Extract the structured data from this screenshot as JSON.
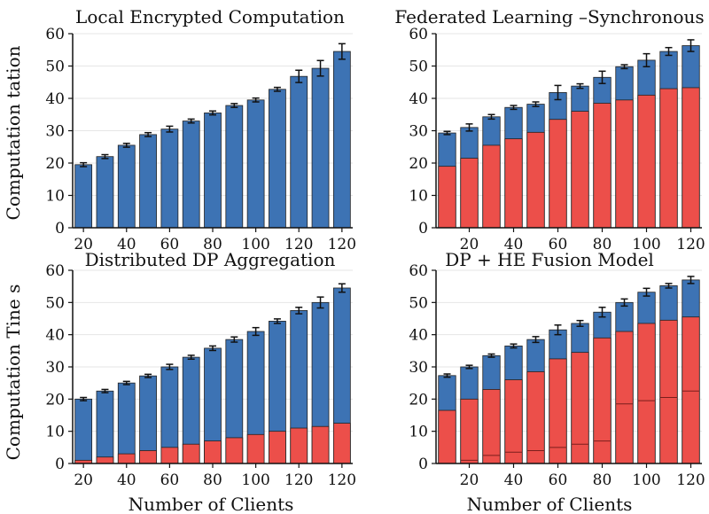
{
  "figure": {
    "ylabel_top": "Computation tation",
    "ylabel_bottom": "Computation Tine s",
    "xlabel_left": "Number of Clients",
    "xlabel_right": "Number of Clients"
  },
  "colors": {
    "blue": "#3d73b4",
    "red": "#ec4f4a"
  },
  "chart_data": [
    {
      "id": "tl",
      "type": "bar",
      "title": "Local Encrypted Computation",
      "ylim": [
        0,
        60
      ],
      "yticks": [
        0,
        10,
        20,
        30,
        40,
        50,
        60
      ],
      "xticks": [
        "20",
        "40",
        "60",
        "80",
        "100",
        "120",
        "120"
      ],
      "xtick_bar_index": [
        0,
        2,
        4,
        6,
        8,
        10,
        12
      ],
      "series": [
        {
          "name": "total",
          "color": "blue",
          "values": [
            19.5,
            22,
            25.5,
            28.8,
            30.5,
            33,
            35.5,
            37.8,
            39.5,
            42.8,
            46.8,
            49.3,
            54.5
          ]
        }
      ],
      "errors": [
        0.6,
        0.6,
        0.6,
        0.6,
        0.9,
        0.6,
        0.6,
        0.6,
        0.6,
        0.6,
        1.9,
        2.4,
        2.4
      ]
    },
    {
      "id": "tr",
      "type": "bar",
      "title": "Federated Learning –Synchronous",
      "ylim": [
        0,
        60
      ],
      "yticks": [
        0,
        10,
        20,
        30,
        40,
        50,
        60
      ],
      "xticks": [
        "20",
        "40",
        "60",
        "80",
        "100",
        "120"
      ],
      "xtick_bar_index": [
        1,
        3,
        5,
        7,
        9,
        11
      ],
      "series": [
        {
          "name": "red",
          "color": "red",
          "values": [
            19,
            21.5,
            25.5,
            27.5,
            29.5,
            33.5,
            36,
            38.5,
            39.5,
            41,
            43,
            43.3
          ]
        },
        {
          "name": "total",
          "color": "blue",
          "values": [
            29.3,
            31,
            34.3,
            37.2,
            38.2,
            41.8,
            43.8,
            46.5,
            49.8,
            51.8,
            54.5,
            56.3
          ]
        }
      ],
      "errors": [
        0.5,
        1.1,
        0.7,
        0.6,
        0.7,
        2.2,
        0.7,
        1.9,
        0.6,
        2.0,
        1.2,
        1.8
      ]
    },
    {
      "id": "bl",
      "type": "bar",
      "title": "Distributed DP Aggregation",
      "ylim": [
        0,
        60
      ],
      "yticks": [
        0,
        10,
        20,
        30,
        40,
        50,
        60
      ],
      "xticks": [
        "20",
        "40",
        "60",
        "80",
        "100",
        "120",
        "120"
      ],
      "xtick_bar_index": [
        0,
        2,
        4,
        6,
        8,
        10,
        12
      ],
      "series": [
        {
          "name": "red",
          "color": "red",
          "values": [
            1,
            2,
            3,
            4,
            5,
            6,
            7,
            8,
            9,
            10,
            11,
            11.5,
            12.5
          ]
        },
        {
          "name": "total",
          "color": "blue",
          "values": [
            20.0,
            22.5,
            25.0,
            27.2,
            30.0,
            33.0,
            35.8,
            38.5,
            41.0,
            44.2,
            47.5,
            50.0,
            54.5
          ]
        }
      ],
      "redtop_abs": [
        1,
        2,
        3,
        4,
        5,
        6,
        7,
        8,
        9,
        10,
        11,
        11.5,
        12.5
      ],
      "errors": [
        0.5,
        0.5,
        0.5,
        0.5,
        0.8,
        0.6,
        0.7,
        0.8,
        1.2,
        0.7,
        1.0,
        1.7,
        1.3
      ]
    },
    {
      "id": "br",
      "type": "bar",
      "title": "DP + HE Fusion Model",
      "ylim": [
        0,
        60
      ],
      "yticks": [
        0,
        10,
        20,
        30,
        40,
        50,
        60
      ],
      "xticks": [
        "20",
        "40",
        "60",
        "80",
        "100",
        "120"
      ],
      "xtick_bar_index": [
        1,
        3,
        5,
        7,
        9,
        11
      ],
      "series": [
        {
          "name": "red_bottom_line",
          "color": "red",
          "values": [
            0,
            1,
            2.5,
            3.5,
            4,
            5,
            6,
            7,
            18.5,
            19.5,
            20.5,
            22.5
          ]
        },
        {
          "name": "red",
          "color": "red",
          "values": [
            16.5,
            20,
            23,
            26,
            28.5,
            32.5,
            34.5,
            39,
            41,
            43.5,
            44.5,
            45.5
          ]
        },
        {
          "name": "total",
          "color": "blue",
          "values": [
            27.3,
            30,
            33.5,
            36.5,
            38.5,
            41.5,
            43.5,
            47,
            50,
            53.2,
            55.2,
            57
          ]
        }
      ],
      "errors": [
        0.5,
        0.5,
        0.5,
        0.6,
        0.9,
        1.5,
        0.9,
        1.5,
        1.1,
        1.2,
        0.7,
        1.1
      ]
    }
  ]
}
